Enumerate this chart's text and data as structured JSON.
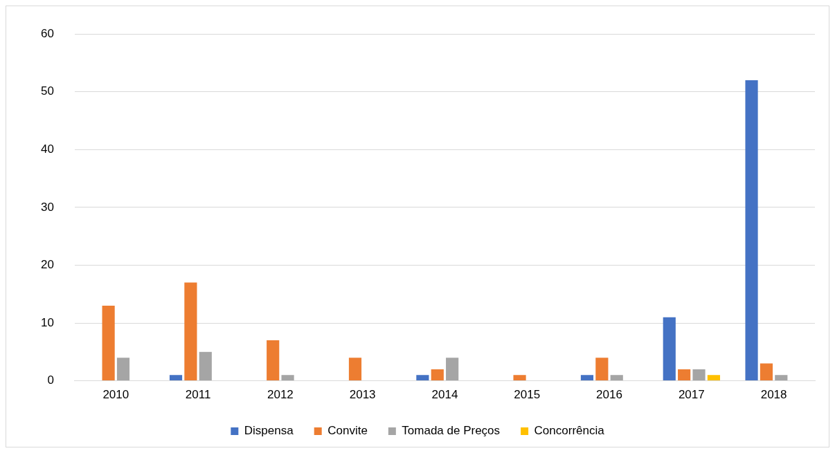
{
  "chart_data": {
    "type": "bar",
    "categories": [
      "2010",
      "2011",
      "2012",
      "2013",
      "2014",
      "2015",
      "2016",
      "2017",
      "2018"
    ],
    "series": [
      {
        "name": "Dispensa",
        "color": "#4472c4",
        "values": [
          0,
          1,
          0,
          0,
          1,
          0,
          1,
          11,
          52
        ]
      },
      {
        "name": "Convite",
        "color": "#ed7d31",
        "values": [
          13,
          17,
          7,
          4,
          2,
          1,
          4,
          2,
          3
        ]
      },
      {
        "name": "Tomada de Preços",
        "color": "#a5a5a5",
        "values": [
          4,
          5,
          1,
          0,
          4,
          0,
          1,
          2,
          1
        ]
      },
      {
        "name": "Concorrência",
        "color": "#ffc000",
        "values": [
          0,
          0,
          0,
          0,
          0,
          0,
          0,
          1,
          0
        ]
      }
    ],
    "ylim": [
      0,
      60
    ],
    "yticks": [
      0,
      10,
      20,
      30,
      40,
      50,
      60
    ],
    "grid": "y",
    "legend": "bottom"
  }
}
